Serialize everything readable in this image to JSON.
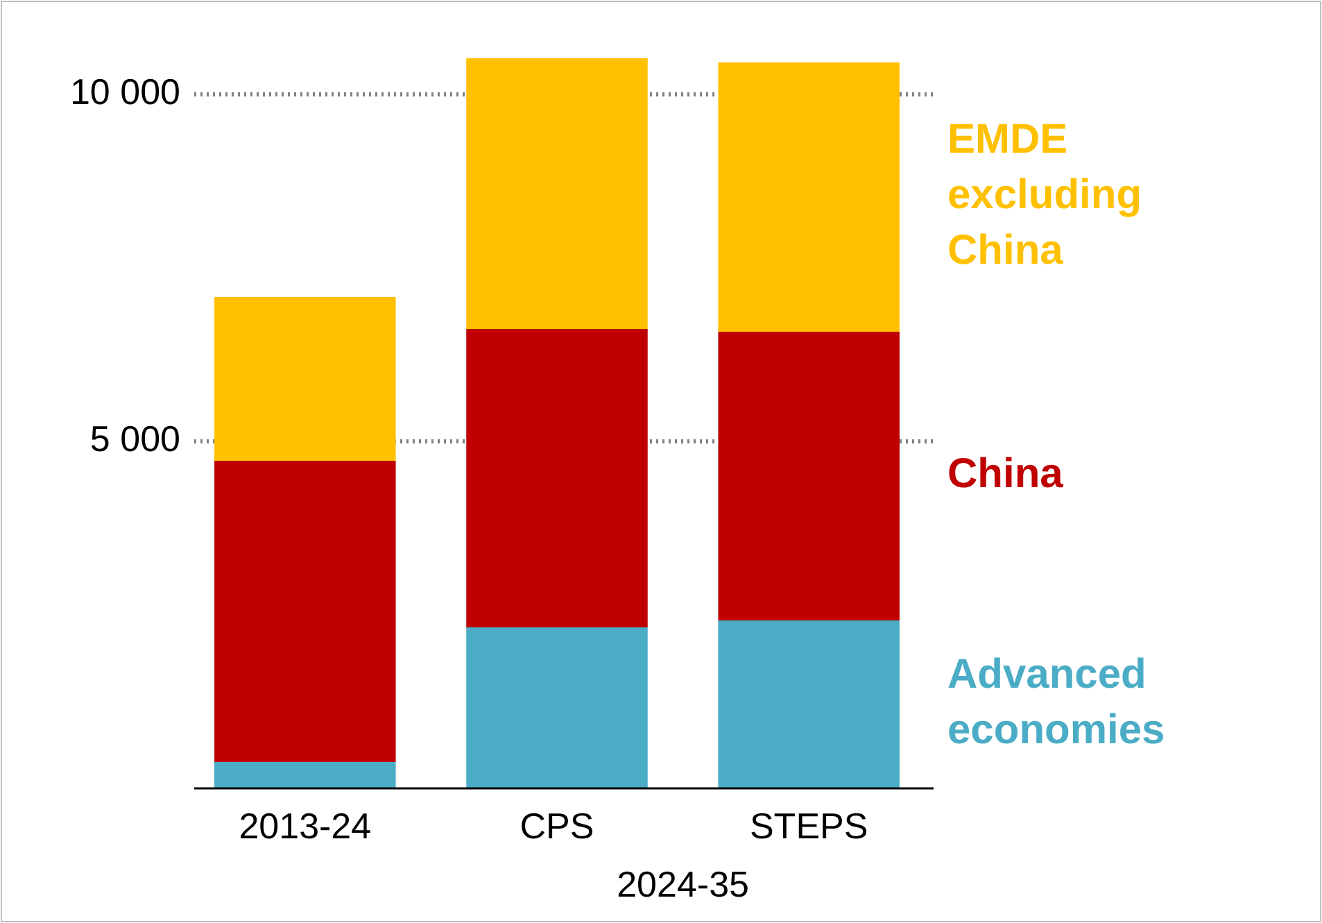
{
  "chart_data": {
    "type": "bar",
    "stacked": true,
    "categories": [
      "2013-24",
      "CPS",
      "STEPS"
    ],
    "series": [
      {
        "name": "Advanced economies",
        "color": "#4bacc6",
        "values": [
          380,
          2320,
          2420
        ]
      },
      {
        "name": "China",
        "color": "#c00000",
        "values": [
          4340,
          4300,
          4160
        ]
      },
      {
        "name": "EMDE excluding China",
        "color": "#ffc000",
        "values": [
          2360,
          3900,
          3880
        ]
      }
    ],
    "annotations": [
      "2024-35"
    ],
    "ylim": [
      0,
      10520
    ],
    "yticks": [
      {
        "value": 5000,
        "label": "5 000"
      },
      {
        "value": 10000,
        "label": "10 000"
      }
    ],
    "grid": "y",
    "legend": "right"
  }
}
